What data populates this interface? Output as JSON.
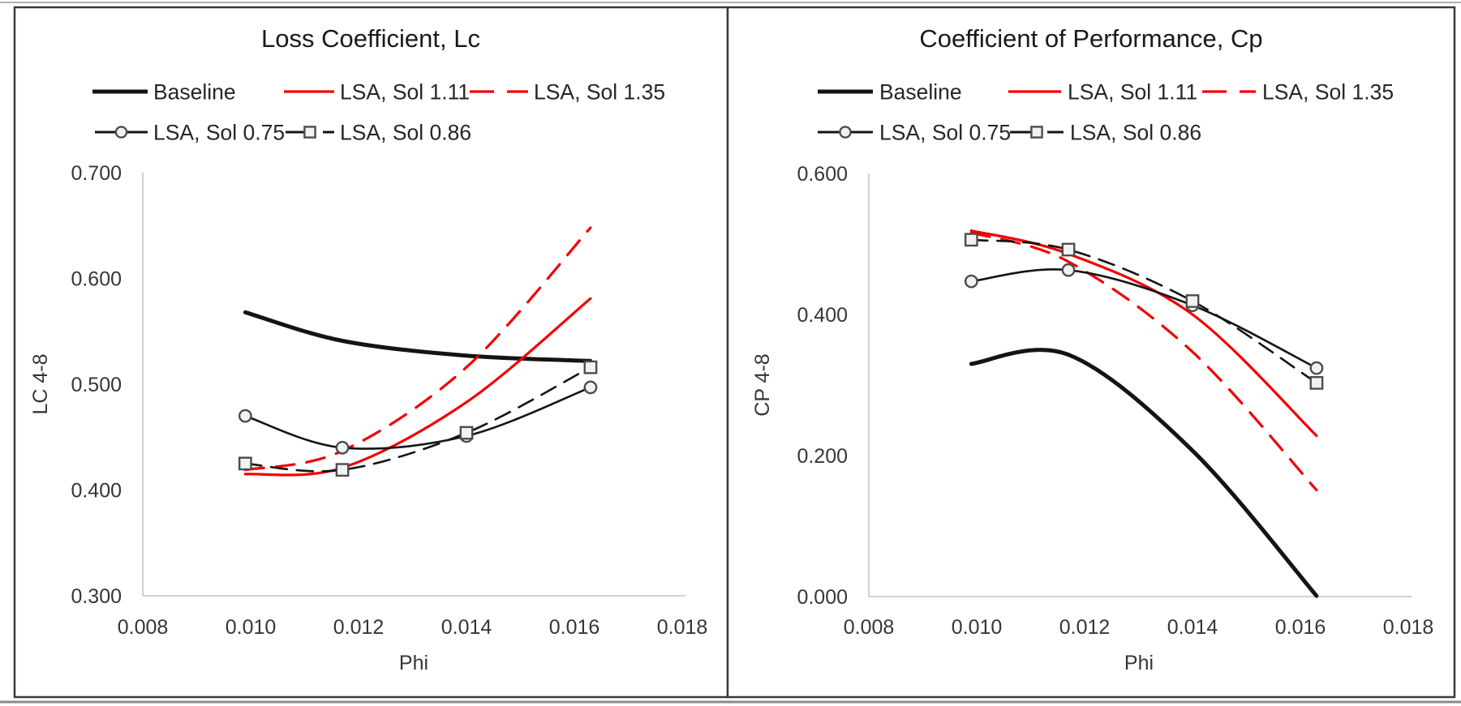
{
  "page": {
    "background": "#ffffff",
    "panel_border_color": "#3a3a3a",
    "top_rule_color": "#aeaeae",
    "bottom_rule_color": "#8a8a8a"
  },
  "colors": {
    "black": "#141414",
    "red": "#f20000",
    "axis_line": "#c3c3c3",
    "tick_text": "#363636",
    "title_text": "#1a1a1a",
    "legend_text": "#262626",
    "marker_fill": "#f2f2f2",
    "marker_stroke": "#4c4c4c"
  },
  "chart_data": [
    {
      "type": "line",
      "title": "Loss Coefficient, Lc",
      "xlabel": "Phi",
      "ylabel": "LC 4-8",
      "xlim": [
        0.008,
        0.018
      ],
      "ylim": [
        0.3,
        0.7
      ],
      "grid": false,
      "legend_position": "top",
      "xticks": [
        0.008,
        0.01,
        0.012,
        0.014,
        0.016,
        0.018
      ],
      "xtick_labels": [
        "0.008",
        "0.010",
        "0.012",
        "0.014",
        "0.016",
        "0.018"
      ],
      "yticks": [
        0.7,
        0.6,
        0.5,
        0.4,
        0.3
      ],
      "ytick_labels": [
        "0.700",
        "0.600",
        "0.500",
        "0.400",
        "0.300"
      ],
      "x": [
        0.0099,
        0.0117,
        0.014,
        0.0163
      ],
      "series": [
        {
          "name": "Baseline",
          "style": "baseline",
          "line": "solid",
          "marker": "none",
          "values": [
            0.568,
            0.541,
            0.527,
            0.522
          ]
        },
        {
          "name": "LSA, Sol 1.11",
          "style": "red_solid",
          "line": "solid",
          "marker": "none",
          "values": [
            0.415,
            0.421,
            0.483,
            0.581
          ]
        },
        {
          "name": "LSA, Sol 1.35",
          "style": "red_dashed",
          "line": "dashed",
          "marker": "none",
          "values": [
            0.419,
            0.437,
            0.516,
            0.648
          ]
        },
        {
          "name": "LSA, Sol 0.75",
          "style": "black_circle",
          "line": "solid",
          "marker": "circle",
          "values": [
            0.47,
            0.44,
            0.451,
            0.497
          ]
        },
        {
          "name": "LSA, Sol 0.86",
          "style": "black_dashed_square",
          "line": "dashed",
          "marker": "square",
          "values": [
            0.425,
            0.419,
            0.454,
            0.516
          ]
        }
      ]
    },
    {
      "type": "line",
      "title": "Coefficient of Performance, Cp",
      "xlabel": "Phi",
      "ylabel": "CP 4-8",
      "xlim": [
        0.008,
        0.018
      ],
      "ylim": [
        0.0,
        0.6
      ],
      "grid": false,
      "legend_position": "top",
      "xticks": [
        0.008,
        0.01,
        0.012,
        0.014,
        0.016,
        0.018
      ],
      "xtick_labels": [
        "0.008",
        "0.010",
        "0.012",
        "0.014",
        "0.016",
        "0.018"
      ],
      "yticks": [
        0.6,
        0.4,
        0.2,
        0.0
      ],
      "ytick_labels": [
        "0.600",
        "0.400",
        "0.200",
        "0.000"
      ],
      "x": [
        0.0099,
        0.0117,
        0.014,
        0.0163
      ],
      "series": [
        {
          "name": "Baseline",
          "style": "baseline",
          "line": "solid",
          "marker": "none",
          "values": [
            0.33,
            0.343,
            0.207,
            0.001
          ]
        },
        {
          "name": "LSA, Sol 1.11",
          "style": "red_solid",
          "line": "solid",
          "marker": "none",
          "values": [
            0.519,
            0.486,
            0.4,
            0.228
          ]
        },
        {
          "name": "LSA, Sol 1.35",
          "style": "red_dashed",
          "line": "dashed",
          "marker": "none",
          "values": [
            0.516,
            0.475,
            0.347,
            0.151
          ]
        },
        {
          "name": "LSA, Sol 0.75",
          "style": "black_circle",
          "line": "solid",
          "marker": "circle",
          "values": [
            0.447,
            0.463,
            0.413,
            0.324
          ]
        },
        {
          "name": "LSA, Sol 0.86",
          "style": "black_dashed_square",
          "line": "dashed",
          "marker": "square",
          "values": [
            0.506,
            0.492,
            0.419,
            0.303
          ]
        }
      ]
    }
  ]
}
